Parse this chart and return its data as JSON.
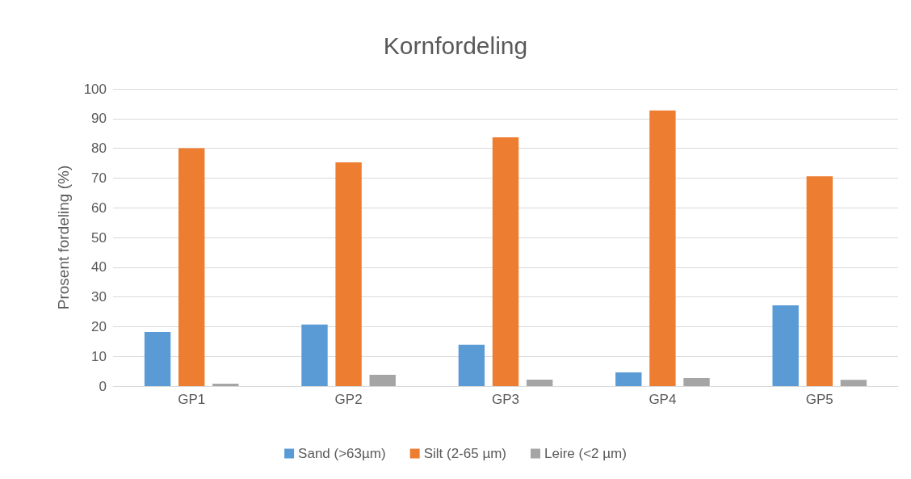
{
  "chart_data": {
    "type": "bar",
    "title": "Kornfordeling",
    "ylabel": "Prosent fordeling (%)",
    "categories": [
      "GP1",
      "GP2",
      "GP3",
      "GP4",
      "GP5"
    ],
    "series": [
      {
        "name": "Sand (>63µm)",
        "color": "#5b9bd5",
        "values": [
          18.2,
          20.7,
          13.9,
          4.6,
          27.2
        ]
      },
      {
        "name": "Silt (2-65 µm)",
        "color": "#ed7d31",
        "values": [
          80,
          75.3,
          83.7,
          92.7,
          70.6
        ]
      },
      {
        "name": "Leire (<2 µm)",
        "color": "#a5a5a5",
        "values": [
          0.8,
          3.8,
          2.2,
          2.7,
          2.1
        ]
      }
    ],
    "ylim": [
      0,
      100
    ],
    "yticks": [
      0,
      10,
      20,
      30,
      40,
      50,
      60,
      70,
      80,
      90,
      100
    ],
    "grid": "y",
    "legend": "bottom"
  }
}
